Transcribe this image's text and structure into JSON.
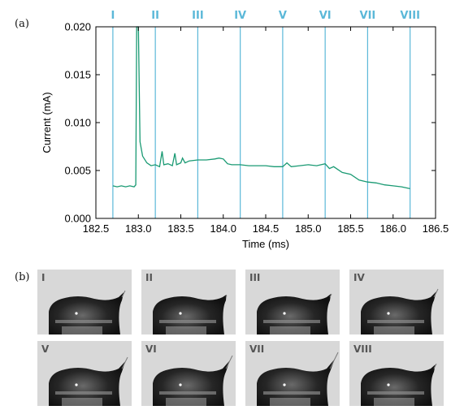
{
  "panel_a_label": "(a)",
  "panel_b_label": "(b)",
  "chart_data": {
    "type": "line",
    "xlabel": "Time (ms)",
    "ylabel": "Current (mA)",
    "xlim": [
      182.5,
      186.5
    ],
    "ylim": [
      0.0,
      0.02
    ],
    "x_ticks": [
      "182.5",
      "183.0",
      "183.5",
      "184.0",
      "184.5",
      "185.0",
      "185.5",
      "186.0",
      "186.5"
    ],
    "y_ticks": [
      "0.000",
      "0.005",
      "0.010",
      "0.015",
      "0.020"
    ],
    "grid": false,
    "series_color": "#1a9a73",
    "marker_color": "#5bb8d8",
    "markers": [
      {
        "label": "I",
        "x": 182.7
      },
      {
        "label": "II",
        "x": 183.2
      },
      {
        "label": "III",
        "x": 183.7
      },
      {
        "label": "IV",
        "x": 184.2
      },
      {
        "label": "V",
        "x": 184.7
      },
      {
        "label": "VI",
        "x": 185.2
      },
      {
        "label": "VII",
        "x": 185.7
      },
      {
        "label": "VIII",
        "x": 186.2
      }
    ],
    "series": [
      {
        "x": [
          182.7,
          182.75,
          182.8,
          182.85,
          182.9,
          182.95,
          182.97,
          182.98,
          183.0,
          183.02,
          183.05,
          183.1,
          183.15,
          183.2,
          183.25,
          183.28,
          183.3,
          183.35,
          183.4,
          183.43,
          183.45,
          183.5,
          183.52,
          183.55,
          183.6,
          183.7,
          183.8,
          183.9,
          183.95,
          184.0,
          184.05,
          184.1,
          184.2,
          184.3,
          184.4,
          184.5,
          184.6,
          184.7,
          184.75,
          184.8,
          184.9,
          185.0,
          185.1,
          185.2,
          185.25,
          185.3,
          185.4,
          185.5,
          185.6,
          185.7,
          185.8,
          185.9,
          186.0,
          186.1,
          186.2
        ],
        "y": [
          0.0034,
          0.0033,
          0.0034,
          0.0033,
          0.0034,
          0.0033,
          0.0035,
          0.02,
          0.02,
          0.008,
          0.0065,
          0.0058,
          0.0055,
          0.0056,
          0.0054,
          0.007,
          0.0056,
          0.0057,
          0.0055,
          0.0068,
          0.0056,
          0.0058,
          0.0063,
          0.0058,
          0.006,
          0.0061,
          0.0061,
          0.0062,
          0.0063,
          0.0062,
          0.0057,
          0.0056,
          0.0056,
          0.0055,
          0.0055,
          0.0055,
          0.0054,
          0.0054,
          0.0058,
          0.0054,
          0.0055,
          0.0056,
          0.0055,
          0.0057,
          0.0052,
          0.0054,
          0.0048,
          0.0046,
          0.004,
          0.0038,
          0.0037,
          0.0035,
          0.0034,
          0.0033,
          0.0031
        ]
      }
    ]
  },
  "frames": [
    {
      "label": "I",
      "icon": "droplet-frame"
    },
    {
      "label": "II",
      "icon": "droplet-frame"
    },
    {
      "label": "III",
      "icon": "droplet-frame"
    },
    {
      "label": "IV",
      "icon": "droplet-frame"
    },
    {
      "label": "V",
      "icon": "droplet-frame"
    },
    {
      "label": "VI",
      "icon": "droplet-frame"
    },
    {
      "label": "VII",
      "icon": "droplet-frame"
    },
    {
      "label": "VIII",
      "icon": "droplet-frame"
    }
  ]
}
